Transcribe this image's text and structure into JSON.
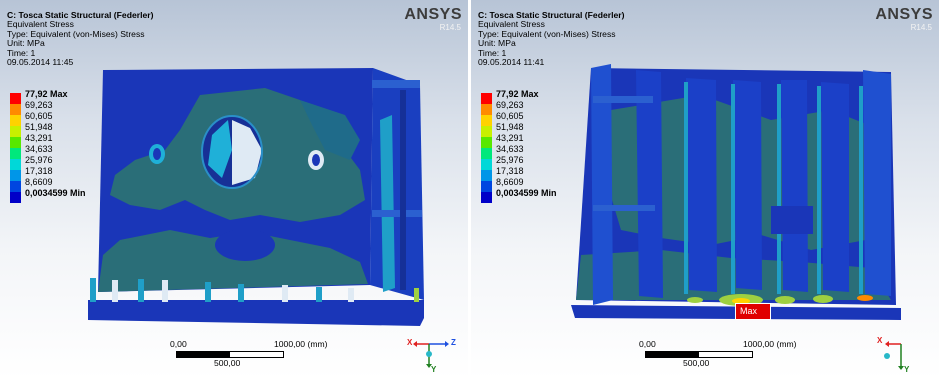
{
  "panels": [
    {
      "title": "C: Tosca Static Structural (Federler)",
      "result": "Equivalent Stress",
      "type_line": "Type: Equivalent (von-Mises) Stress",
      "unit_line": "Unit: MPa",
      "time_line": "Time: 1",
      "date_line": "09.05.2014 11:45",
      "legend": {
        "max_label": "77,92 Max",
        "values": [
          "69,263",
          "60,605",
          "51,948",
          "43,291",
          "34,633",
          "25,976",
          "17,318",
          "8,6609"
        ],
        "min_label": "0,0034599 Min",
        "colors": [
          "#ff0000",
          "#ff8a00",
          "#ffd200",
          "#c8f000",
          "#58e800",
          "#00e87c",
          "#00d8d8",
          "#0096e8",
          "#0046e0",
          "#0000c8"
        ]
      },
      "scale_bar": {
        "start": "0,00",
        "end": "1000,00 (mm)",
        "mid": "500,00"
      },
      "axis": {
        "labels": [
          "X",
          "Y",
          "Z"
        ]
      },
      "max_marker": ""
    },
    {
      "title": "C: Tosca Static Structural (Federler)",
      "result": "Equivalent Stress",
      "type_line": "Type: Equivalent (von-Mises) Stress",
      "unit_line": "Unit: MPa",
      "time_line": "Time: 1",
      "date_line": "09.05.2014 11:41",
      "legend": {
        "max_label": "77,92 Max",
        "values": [
          "69,263",
          "60,605",
          "51,948",
          "43,291",
          "34,633",
          "25,976",
          "17,318",
          "8,6609"
        ],
        "min_label": "0,0034599 Min",
        "colors": [
          "#ff0000",
          "#ff8a00",
          "#ffd200",
          "#c8f000",
          "#58e800",
          "#00e87c",
          "#00d8d8",
          "#0096e8",
          "#0046e0",
          "#0000c8"
        ]
      },
      "scale_bar": {
        "start": "0,00",
        "end": "1000,00 (mm)",
        "mid": "500,00"
      },
      "axis": {
        "labels": [
          "X",
          "Y"
        ]
      },
      "max_marker": "Max"
    }
  ],
  "logo": {
    "brand": "ANSYS",
    "version": "R14.5"
  },
  "colors": {
    "mesh_deep_blue": "#1a36b8",
    "mesh_teal": "#2a6e78",
    "mesh_cyan": "#1f9fc8"
  }
}
